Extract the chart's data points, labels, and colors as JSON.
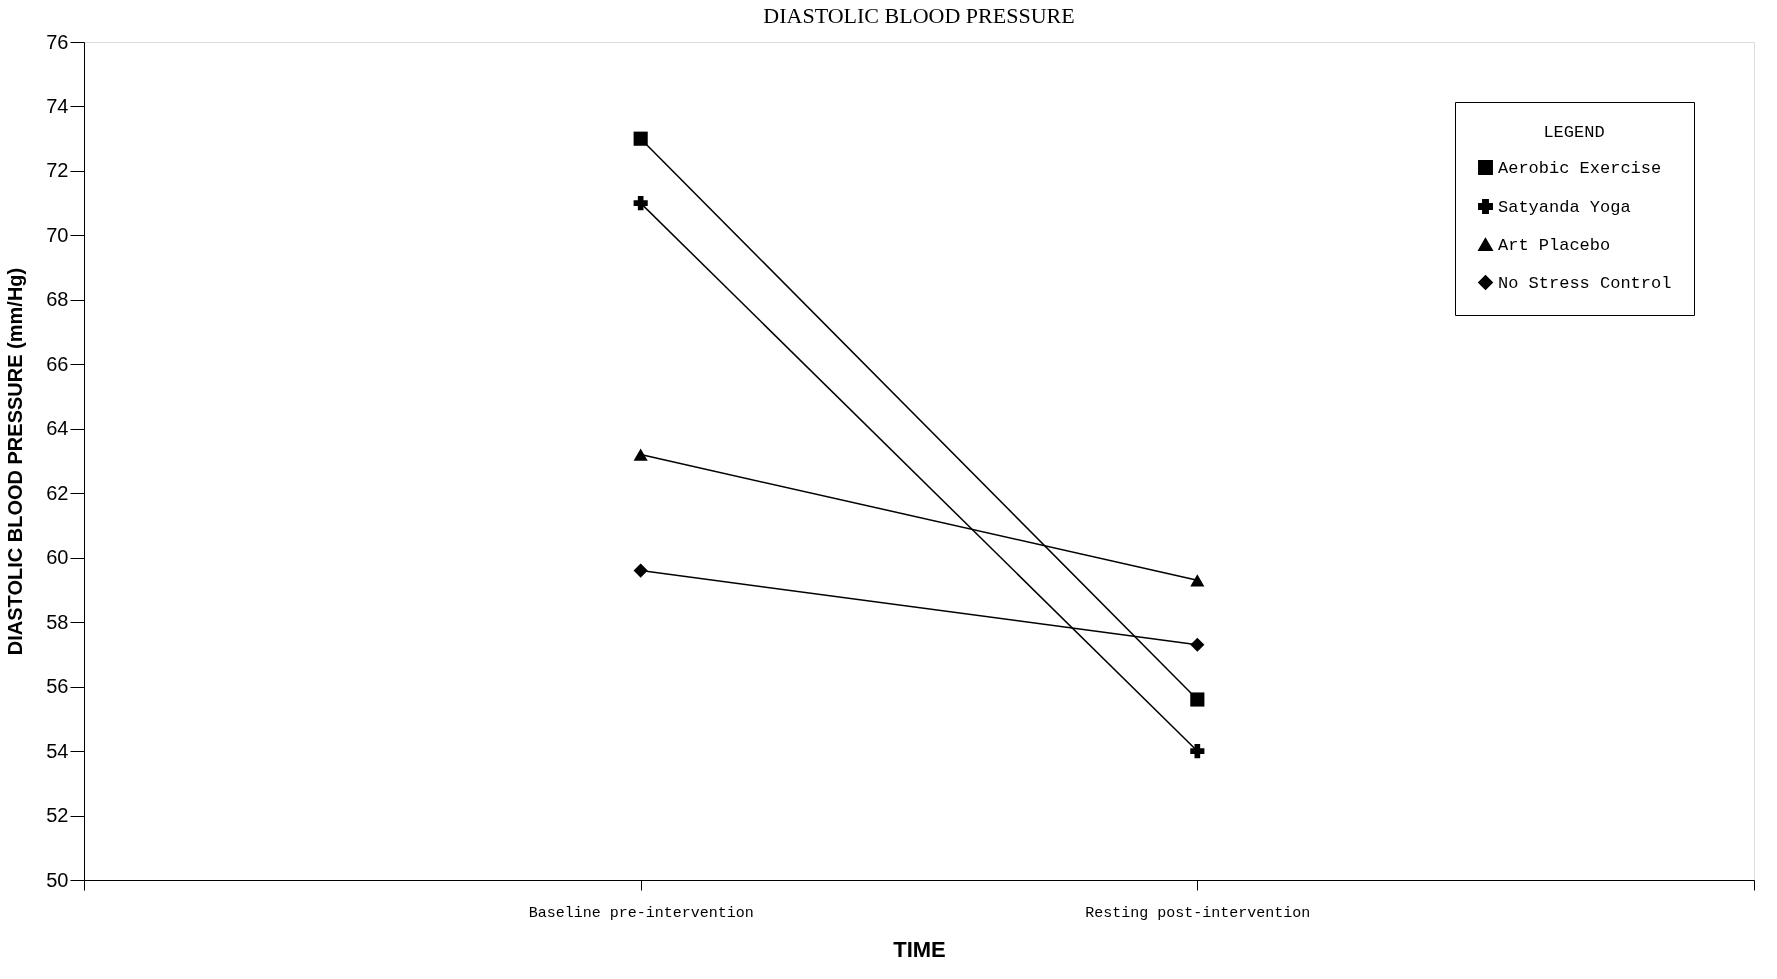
{
  "chart_data": {
    "type": "line",
    "title": "DIASTOLIC BLOOD PRESSURE",
    "xlabel": "TIME",
    "ylabel": "DIASTOLIC BLOOD PRESSURE (mm/Hg)",
    "legend_title": "LEGEND",
    "categories": [
      null,
      "Baseline pre-intervention",
      "Resting post-intervention",
      null
    ],
    "series": [
      {
        "name": "Aerobic Exercise",
        "color": "#000000",
        "marker": "square",
        "values": [
          null,
          73,
          55.6,
          null
        ]
      },
      {
        "name": "Satyanda Yoga",
        "color": "#000000",
        "marker": "cross",
        "values": [
          null,
          71,
          54,
          null
        ]
      },
      {
        "name": "Art Placebo",
        "color": "#000000",
        "marker": "triangle",
        "values": [
          null,
          63.2,
          59.3,
          null
        ]
      },
      {
        "name": "No Stress Control",
        "color": "#000000",
        "marker": "diamond",
        "values": [
          null,
          59.6,
          57.3,
          null
        ]
      }
    ],
    "ylim": [
      50,
      76
    ],
    "yticks": [
      50,
      52,
      54,
      56,
      58,
      60,
      62,
      64,
      66,
      68,
      70,
      72,
      74,
      76
    ],
    "grid": false,
    "legend": "top right",
    "line_style": "solid"
  }
}
